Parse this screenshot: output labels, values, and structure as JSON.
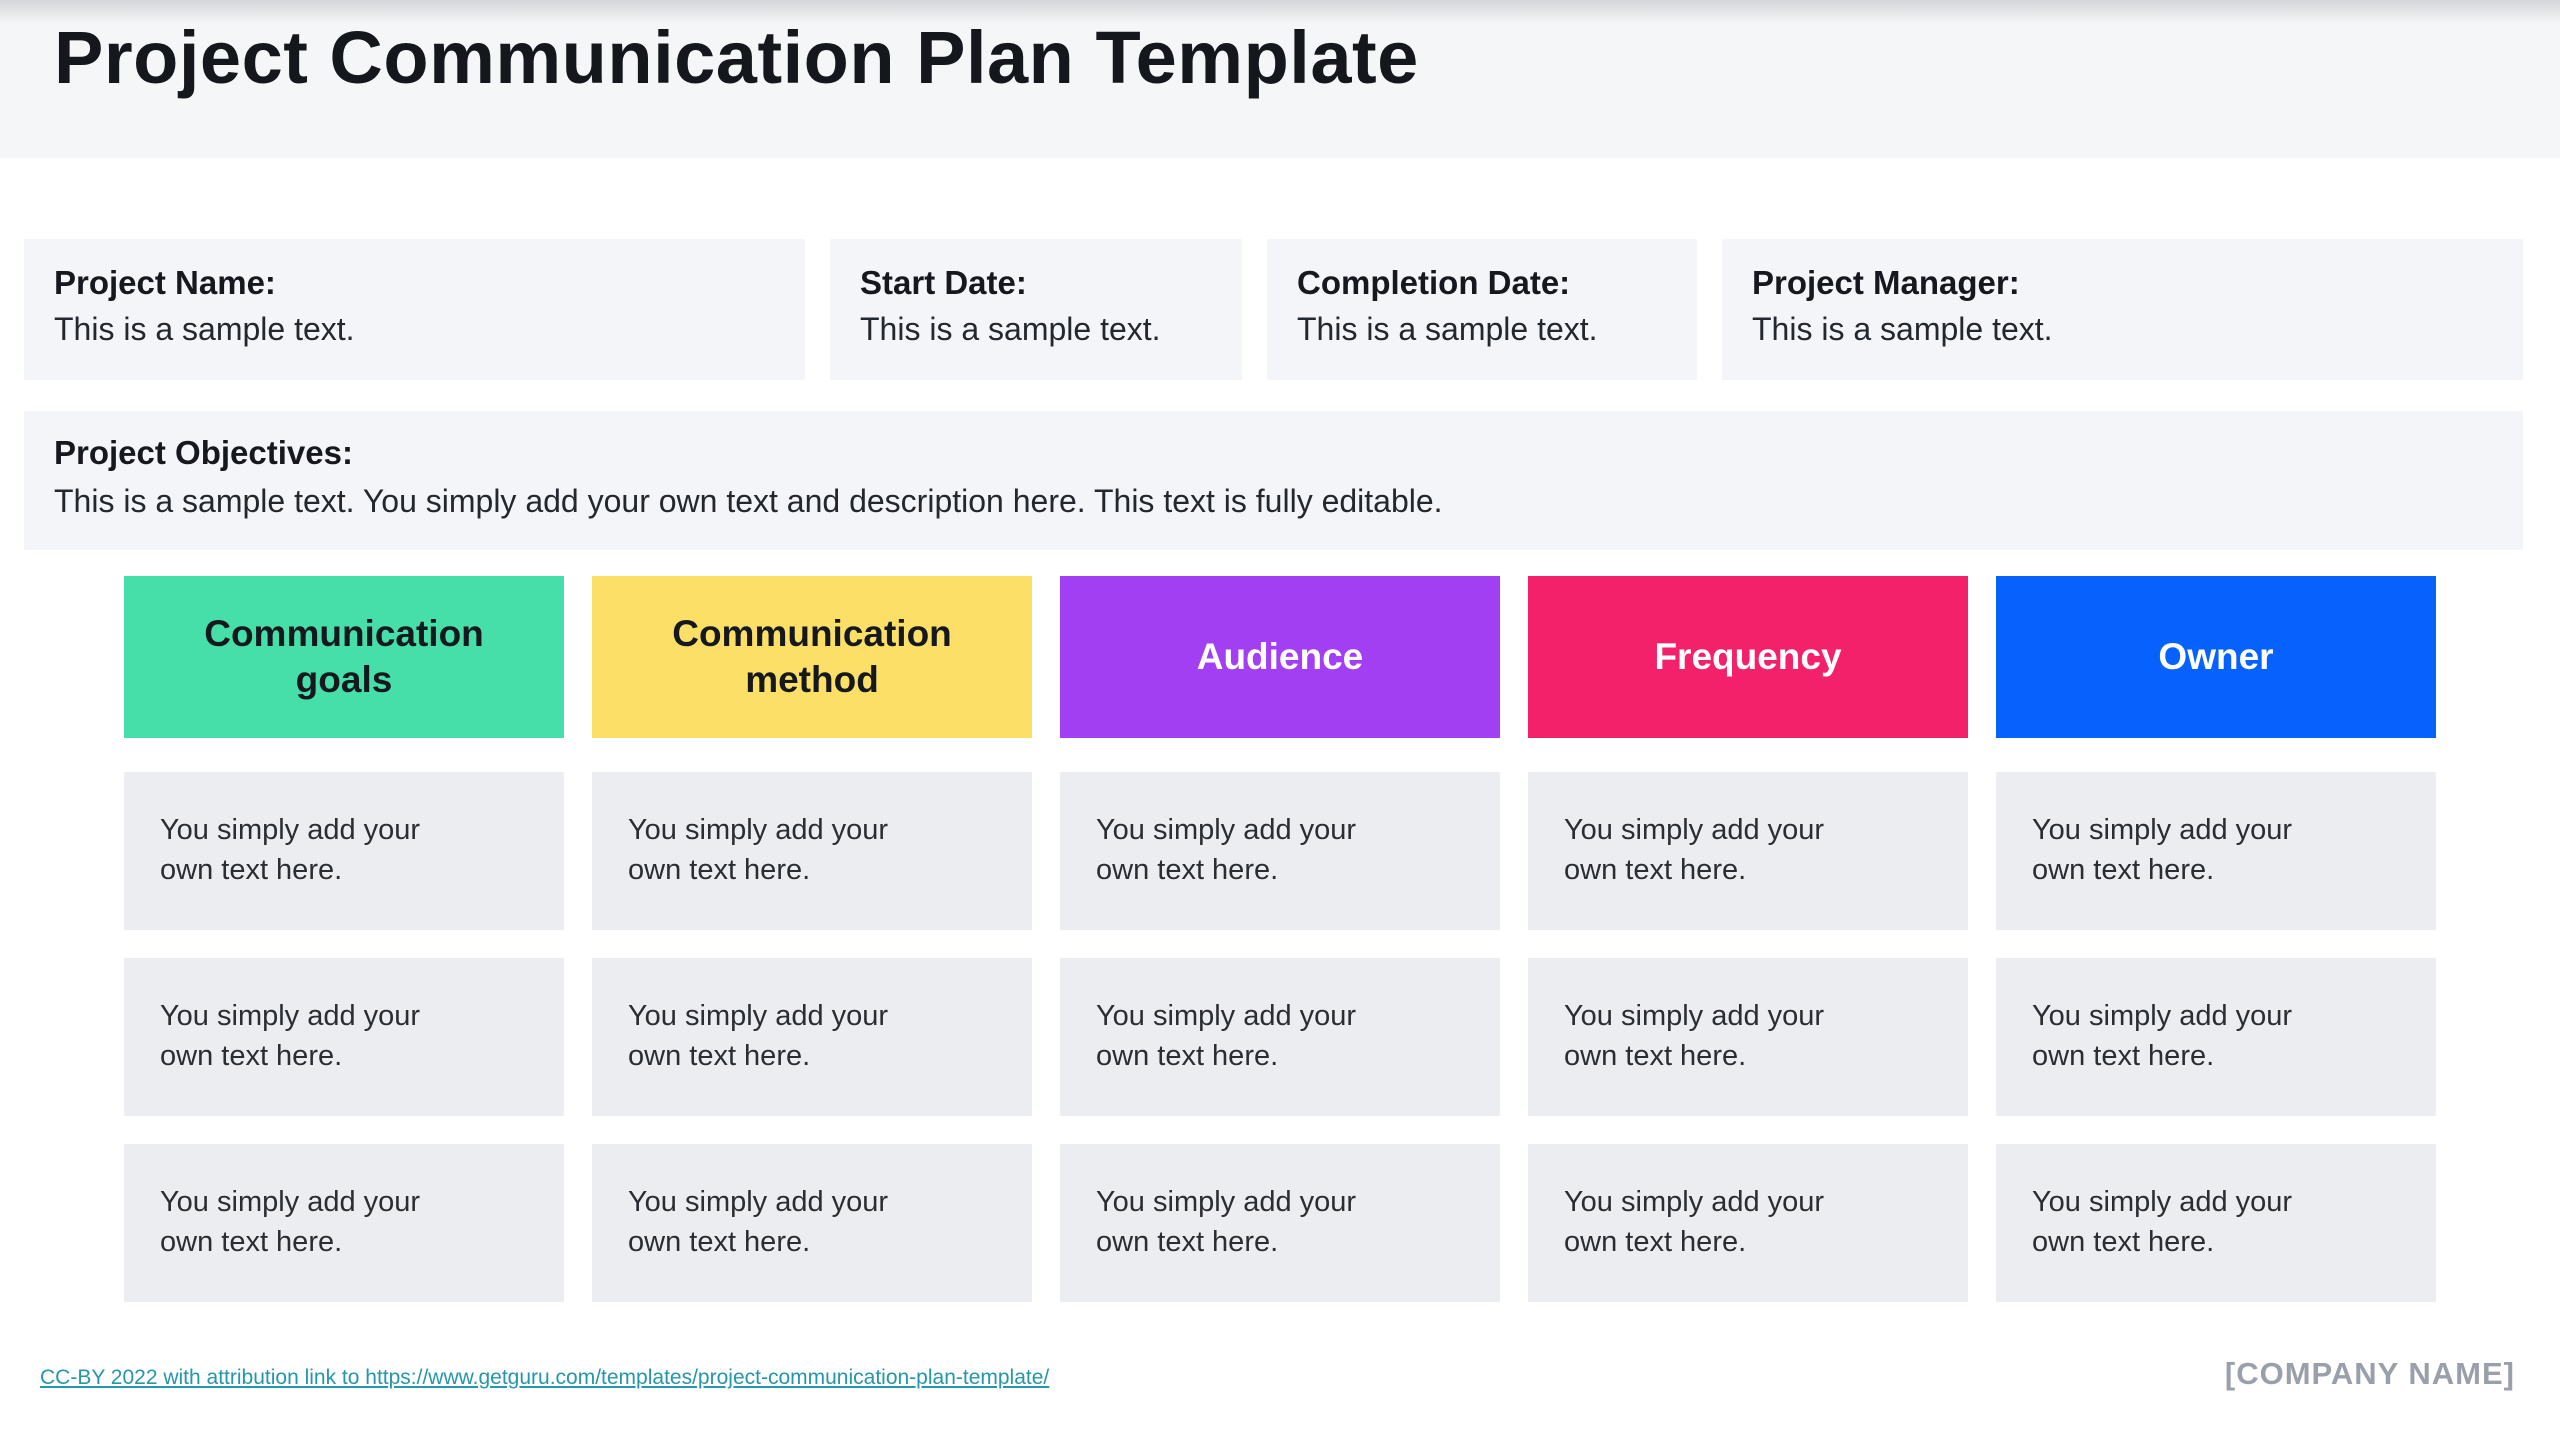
{
  "page": {
    "title": "Project Communication Plan Template",
    "background": "#ffffff",
    "band_background": "#f5f6f8",
    "box_background": "#f4f5f8",
    "cell_background": "#ebedf0"
  },
  "fields": [
    {
      "label": "Project Name:",
      "value": "This is a sample text."
    },
    {
      "label": "Start Date:",
      "value": "This is a sample text."
    },
    {
      "label": "Completion Date:",
      "value": "This is a sample text."
    },
    {
      "label": "Project Manager:",
      "value": "This is a sample text."
    }
  ],
  "objectives": {
    "label": "Project Objectives:",
    "value": "This is a sample text. You simply add your own text and description here. This text is fully editable."
  },
  "table": {
    "rows": 3,
    "cell_text": "You simply add your own text here.",
    "columns": [
      {
        "label": "Communication goals",
        "color": "#46dea9",
        "text_color": "#15181d"
      },
      {
        "label": "Communication method",
        "color": "#fcdf66",
        "text_color": "#15181d"
      },
      {
        "label": "Audience",
        "color": "#a33ff2",
        "text_color": "#ffffff"
      },
      {
        "label": "Frequency",
        "color": "#f2216a",
        "text_color": "#ffffff"
      },
      {
        "label": "Owner",
        "color": "#0761fc",
        "text_color": "#ffffff"
      }
    ]
  },
  "footer": {
    "attribution": "CC-BY 2022 with attribution link to https://www.getguru.com/templates/project-communication-plan-template/",
    "attribution_color": "#2596ab",
    "company": "[COMPANY NAME]",
    "company_color": "#9aa0ab"
  }
}
